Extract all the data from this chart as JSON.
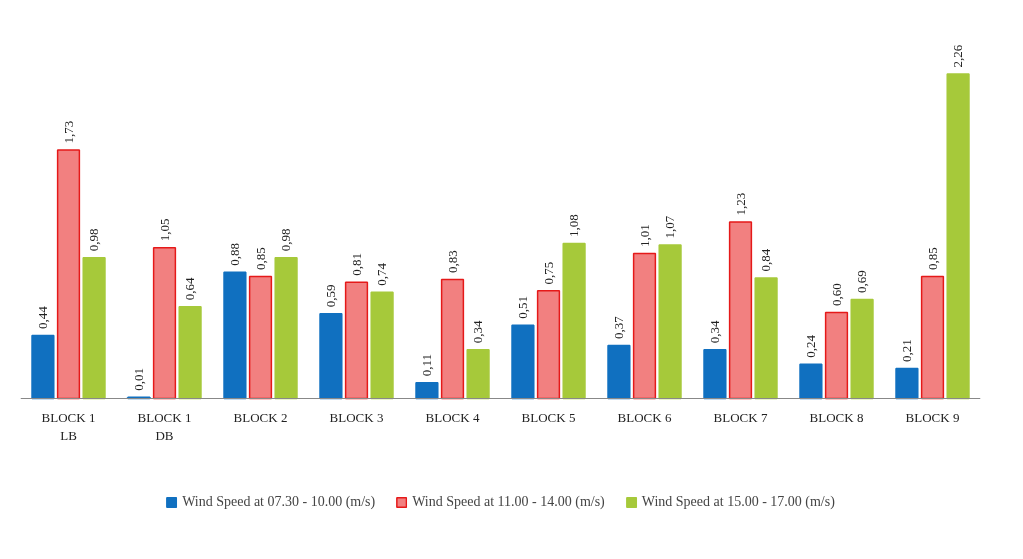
{
  "chart_data": {
    "type": "bar",
    "categories": [
      "BLOCK 1\nLB",
      "BLOCK 1\nDB",
      "BLOCK 2",
      "BLOCK 3",
      "BLOCK 4",
      "BLOCK 5",
      "BLOCK 6",
      "BLOCK 7",
      "BLOCK 8",
      "BLOCK 9"
    ],
    "series": [
      {
        "name": "Wind Speed at 07.30 - 10.00 (m/s)",
        "color": "#1070c0",
        "values": [
          0.44,
          0.01,
          0.88,
          0.59,
          0.11,
          0.51,
          0.37,
          0.34,
          0.24,
          0.21
        ],
        "value_labels": [
          "0,44",
          "0,01",
          "0,88",
          "0,59",
          "0,11",
          "0,51",
          "0,37",
          "0,34",
          "0,24",
          "0,21"
        ]
      },
      {
        "name": "Wind Speed at 11.00 - 14.00 (m/s)",
        "color": "#f28080",
        "values": [
          1.73,
          1.05,
          0.85,
          0.81,
          0.83,
          0.75,
          1.01,
          1.23,
          0.6,
          0.85
        ],
        "value_labels": [
          "1,73",
          "1,05",
          "0,85",
          "0,81",
          "0,83",
          "0,75",
          "1,01",
          "1,23",
          "0,60",
          "0,85"
        ]
      },
      {
        "name": "Wind Speed at 15.00 - 17.00 (m/s)",
        "color": "#a6c93a",
        "values": [
          0.98,
          0.64,
          0.98,
          0.74,
          0.34,
          1.08,
          1.07,
          0.84,
          0.69,
          2.26
        ],
        "value_labels": [
          "0,98",
          "0,64",
          "0,98",
          "0,74",
          "0,34",
          "1,08",
          "1,07",
          "0,84",
          "0,69",
          "2,26"
        ]
      }
    ],
    "legend": "bottom"
  }
}
